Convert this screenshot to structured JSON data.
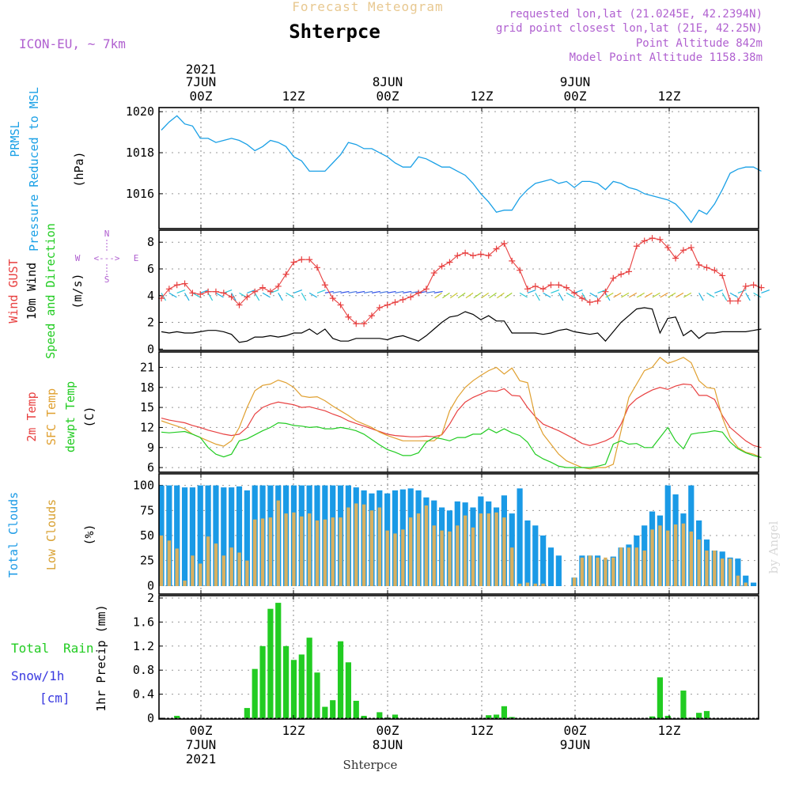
{
  "header": {
    "title": "Forecast Meteogram",
    "location": "Shterpce",
    "model": "ICON-EU, ~ 7km",
    "requested": "requested lon,lat (21.0245E, 42.2394N)",
    "gridpoint": "grid point closest lon,lat (21E, 42.25N)",
    "point_alt": "Point Altitude 842m",
    "model_alt": "Model Point Altitude 1158.38m"
  },
  "top_axis": {
    "year": "2021",
    "ticks": [
      "7JUN",
      "00Z",
      "12Z",
      "8JUN",
      "00Z",
      "12Z",
      "9JUN",
      "00Z",
      "12Z"
    ]
  },
  "bottom_axis": {
    "ticks": [
      "00Z",
      "7JUN",
      "12Z",
      "00Z",
      "8JUN",
      "12Z",
      "00Z",
      "9JUN",
      "12Z"
    ],
    "year": "2021",
    "station": "Shterpce"
  },
  "panel_labels": {
    "p1": [
      "PRMSL",
      "Pressure Reduced to MSL",
      "(hPa)"
    ],
    "p2": [
      "Wind GUST",
      "10m Wind",
      "Speed and Direction",
      "(m/s)"
    ],
    "compass": [
      "N",
      "W",
      "<--->",
      "E",
      "S"
    ],
    "p3": [
      "2m Temp",
      "SFC Temp",
      "dewpt Temp",
      "(C)"
    ],
    "p4": [
      "Total Clouds",
      "Low Clouds",
      "(%)"
    ],
    "p5": [
      "Total",
      "Rain",
      "Snow/1h",
      "[cm]",
      "1hr Precip (mm)"
    ]
  },
  "watermark": "by Angel",
  "colors": {
    "pressure": "#1aa0e6",
    "gust": "#e84040",
    "wind": "#000000",
    "t2m": "#e84040",
    "tsfc": "#e0a030",
    "dewpt": "#22cc22",
    "total_cloud": "#1a9ae6",
    "low_cloud": "#d8b060",
    "rain": "#22cc22",
    "purple": "#b060d0"
  },
  "chart_data": [
    {
      "type": "line",
      "title": "PRMSL Pressure Reduced to MSL",
      "ylabel": "(hPa)",
      "ylim": [
        1014.3,
        1020.2
      ],
      "yticks": [
        "1016",
        "1018",
        "1020"
      ],
      "series": [
        {
          "name": "PRMSL",
          "values": [
            1019.1,
            1019.5,
            1019.8,
            1019.4,
            1019.3,
            1018.7,
            1018.7,
            1018.5,
            1018.6,
            1018.7,
            1018.6,
            1018.4,
            1018.1,
            1018.3,
            1018.6,
            1018.5,
            1018.3,
            1017.8,
            1017.6,
            1017.1,
            1017.1,
            1017.1,
            1017.5,
            1017.9,
            1018.5,
            1018.4,
            1018.2,
            1018.2,
            1018.0,
            1017.8,
            1017.5,
            1017.3,
            1017.3,
            1017.8,
            1017.7,
            1017.5,
            1017.3,
            1017.3,
            1017.1,
            1016.9,
            1016.5,
            1016.0,
            1015.6,
            1015.1,
            1015.2,
            1015.2,
            1015.8,
            1016.2,
            1016.5,
            1016.6,
            1016.7,
            1016.5,
            1016.6,
            1016.3,
            1016.6,
            1016.6,
            1016.5,
            1016.2,
            1016.6,
            1016.5,
            1016.3,
            1016.2,
            1016.0,
            1015.9,
            1015.8,
            1015.7,
            1015.5,
            1015.1,
            1014.6,
            1015.2,
            1015.0,
            1015.5,
            1016.2,
            1017.0,
            1017.2,
            1017.3,
            1017.3,
            1017.1
          ]
        }
      ]
    },
    {
      "type": "line",
      "title": "Wind GUST / 10m Wind Speed and Direction",
      "ylabel": "(m/s)",
      "ylim": [
        -0.1,
        8.9
      ],
      "yticks": [
        "0",
        "2",
        "4",
        "6",
        "8"
      ],
      "series": [
        {
          "name": "Wind GUST",
          "values": [
            3.8,
            4.5,
            4.8,
            4.9,
            4.2,
            4.1,
            4.3,
            4.3,
            4.2,
            3.9,
            3.3,
            3.9,
            4.3,
            4.6,
            4.3,
            4.7,
            5.6,
            6.5,
            6.7,
            6.7,
            6.1,
            4.8,
            3.8,
            3.3,
            2.4,
            1.9,
            1.9,
            2.5,
            3.1,
            3.3,
            3.5,
            3.7,
            3.9,
            4.2,
            4.5,
            5.7,
            6.2,
            6.5,
            7.0,
            7.2,
            7.0,
            7.1,
            7.0,
            7.5,
            7.9,
            6.6,
            5.9,
            4.5,
            4.7,
            4.5,
            4.8,
            4.8,
            4.6,
            4.2,
            3.8,
            3.5,
            3.6,
            4.3,
            5.3,
            5.6,
            5.8,
            7.7,
            8.1,
            8.3,
            8.2,
            7.6,
            6.8,
            7.4,
            7.6,
            6.3,
            6.1,
            5.9,
            5.5,
            3.6,
            3.6,
            4.7,
            4.8,
            4.6
          ]
        },
        {
          "name": "10m Wind",
          "values": [
            1.3,
            1.2,
            1.3,
            1.2,
            1.2,
            1.3,
            1.4,
            1.4,
            1.3,
            1.1,
            0.5,
            0.6,
            0.9,
            0.9,
            1.0,
            0.9,
            1.0,
            1.2,
            1.2,
            1.5,
            1.1,
            1.5,
            0.8,
            0.6,
            0.6,
            0.8,
            0.8,
            0.8,
            0.8,
            0.7,
            0.9,
            1.0,
            0.8,
            0.6,
            1.0,
            1.5,
            2.0,
            2.4,
            2.5,
            2.8,
            2.6,
            2.2,
            2.5,
            2.1,
            2.1,
            1.2,
            1.2,
            1.2,
            1.2,
            1.1,
            1.2,
            1.4,
            1.5,
            1.3,
            1.2,
            1.1,
            1.2,
            0.6,
            1.3,
            2.0,
            2.5,
            3.0,
            3.1,
            3.0,
            1.2,
            2.3,
            2.4,
            1.0,
            1.4,
            0.8,
            1.2,
            1.2,
            1.3,
            1.3,
            1.3,
            1.3,
            1.4,
            1.5
          ]
        }
      ]
    },
    {
      "type": "line",
      "title": "2m Temp / SFC Temp / dewpt Temp",
      "ylabel": "(C)",
      "ylim": [
        5.3,
        23.3
      ],
      "yticks": [
        "6",
        "9",
        "12",
        "15",
        "18",
        "21"
      ],
      "series": [
        {
          "name": "2m Temp",
          "values": [
            13.4,
            13.1,
            12.9,
            12.7,
            12.3,
            12.0,
            11.6,
            11.3,
            11.0,
            10.8,
            11.0,
            12.0,
            14.0,
            15.0,
            15.5,
            15.8,
            15.6,
            15.4,
            15.0,
            15.1,
            14.8,
            14.5,
            14.0,
            13.6,
            13.0,
            12.6,
            12.2,
            11.8,
            11.4,
            11.0,
            10.8,
            10.7,
            10.6,
            10.6,
            10.7,
            10.6,
            10.9,
            12.5,
            14.5,
            15.8,
            16.5,
            17.0,
            17.5,
            17.4,
            17.8,
            16.8,
            16.7,
            15.0,
            13.6,
            12.5,
            12.0,
            11.5,
            10.9,
            10.3,
            9.6,
            9.3,
            9.6,
            10.0,
            10.6,
            12.5,
            15.2,
            16.3,
            17.0,
            17.6,
            18.0,
            17.7,
            18.2,
            18.5,
            18.4,
            16.8,
            16.8,
            16.2,
            13.8,
            12.0,
            11.0,
            10.0,
            9.3,
            9.0
          ]
        },
        {
          "name": "SFC Temp",
          "values": [
            13.0,
            12.6,
            12.2,
            11.8,
            11.0,
            10.5,
            10.0,
            9.5,
            9.2,
            10.0,
            12.0,
            15.0,
            17.5,
            18.3,
            18.5,
            19.1,
            18.7,
            18.0,
            16.7,
            16.5,
            16.6,
            16.0,
            15.2,
            14.5,
            13.8,
            13.0,
            12.5,
            12.0,
            11.3,
            10.8,
            10.4,
            10.0,
            10.0,
            10.0,
            10.0,
            10.0,
            11.0,
            14.5,
            16.5,
            18.0,
            19.0,
            19.8,
            20.5,
            21.0,
            20.0,
            20.9,
            19.0,
            18.7,
            13.5,
            11.0,
            9.5,
            8.0,
            7.0,
            6.5,
            6.0,
            5.8,
            6.0,
            6.0,
            6.5,
            11.5,
            16.5,
            18.5,
            20.5,
            21.0,
            22.5,
            21.6,
            22.0,
            22.5,
            21.7,
            19.0,
            18.0,
            17.8,
            13.5,
            10.5,
            9.0,
            8.3,
            8.0,
            7.5
          ]
        },
        {
          "name": "dewpt Temp",
          "values": [
            11.3,
            11.2,
            11.3,
            11.4,
            11.0,
            10.5,
            9.0,
            8.0,
            7.6,
            8.0,
            10.0,
            10.3,
            10.9,
            11.5,
            12.0,
            12.7,
            12.6,
            12.3,
            12.2,
            12.0,
            12.1,
            11.8,
            11.8,
            12.0,
            11.8,
            11.5,
            11.0,
            10.2,
            9.4,
            8.7,
            8.3,
            7.8,
            7.8,
            8.2,
            9.8,
            10.5,
            10.3,
            10.0,
            10.5,
            10.5,
            11.0,
            11.0,
            11.8,
            11.2,
            11.8,
            11.2,
            10.8,
            9.8,
            8.0,
            7.3,
            6.8,
            6.2,
            6.0,
            6.0,
            6.0,
            6.0,
            6.2,
            6.5,
            9.5,
            10.0,
            9.5,
            9.6,
            9.0,
            9.0,
            10.5,
            12.0,
            10.0,
            8.8,
            11.0,
            11.2,
            11.3,
            11.5,
            11.3,
            9.8,
            8.8,
            8.2,
            7.8,
            7.5
          ]
        }
      ]
    },
    {
      "type": "bar",
      "title": "Total Clouds / Low Clouds",
      "ylabel": "(%)",
      "ylim": [
        0,
        100
      ],
      "yticks": [
        "0",
        "25",
        "50",
        "75",
        "100"
      ],
      "series": [
        {
          "name": "Total Clouds",
          "values": [
            100,
            100,
            100,
            98,
            98,
            100,
            100,
            100,
            98,
            98,
            99,
            95,
            100,
            100,
            100,
            100,
            100,
            100,
            100,
            100,
            100,
            100,
            100,
            100,
            100,
            98,
            95,
            92,
            95,
            92,
            95,
            96,
            97,
            95,
            88,
            85,
            78,
            75,
            84,
            83,
            78,
            89,
            84,
            78,
            90,
            72,
            97,
            65,
            60,
            50,
            38,
            30,
            0,
            8,
            30,
            30,
            30,
            26,
            29,
            38,
            41,
            50,
            60,
            74,
            70,
            100,
            91,
            72,
            100,
            65,
            46,
            35,
            34,
            28,
            27,
            10,
            3,
            0
          ]
        },
        {
          "name": "Low Clouds",
          "values": [
            50,
            45,
            37,
            5,
            30,
            22,
            49,
            42,
            30,
            38,
            33,
            25,
            66,
            67,
            68,
            85,
            72,
            73,
            69,
            72,
            65,
            66,
            68,
            68,
            78,
            82,
            81,
            75,
            78,
            55,
            52,
            56,
            68,
            72,
            80,
            60,
            55,
            54,
            60,
            70,
            58,
            72,
            72,
            73,
            68,
            38,
            2,
            3,
            2,
            2,
            0,
            0,
            0,
            8,
            28,
            30,
            28,
            28,
            28,
            38,
            38,
            38,
            35,
            56,
            60,
            55,
            61,
            62,
            54,
            46,
            35,
            35,
            27,
            27,
            10,
            3,
            0,
            0
          ]
        }
      ]
    },
    {
      "type": "bar",
      "title": "1hr Precip (mm)",
      "ylabel": "1hr Precip (mm)",
      "ylim": [
        0,
        2.0
      ],
      "yticks": [
        "0",
        "0.4",
        "0.8",
        "1.2",
        "1.6",
        "2"
      ],
      "series": [
        {
          "name": "Total Rain",
          "values": [
            0,
            0,
            0.04,
            0,
            0,
            0,
            0,
            0,
            0,
            0,
            0,
            0.17,
            0.82,
            1.2,
            1.82,
            1.92,
            1.2,
            0.97,
            1.06,
            1.34,
            0.76,
            0.19,
            0.3,
            1.28,
            0.93,
            0.29,
            0.04,
            0,
            0.1,
            0.01,
            0.06,
            0,
            0,
            0,
            0,
            0,
            0,
            0,
            0,
            0,
            0,
            0,
            0.05,
            0.06,
            0.2,
            0.02,
            0,
            0,
            0,
            0,
            0,
            0,
            0,
            0,
            0,
            0,
            0,
            0,
            0,
            0,
            0,
            0,
            0,
            0.03,
            0.68,
            0.04,
            0,
            0.46,
            0.01,
            0.09,
            0.12,
            0,
            0,
            0,
            0,
            0,
            0,
            0
          ]
        }
      ]
    }
  ]
}
